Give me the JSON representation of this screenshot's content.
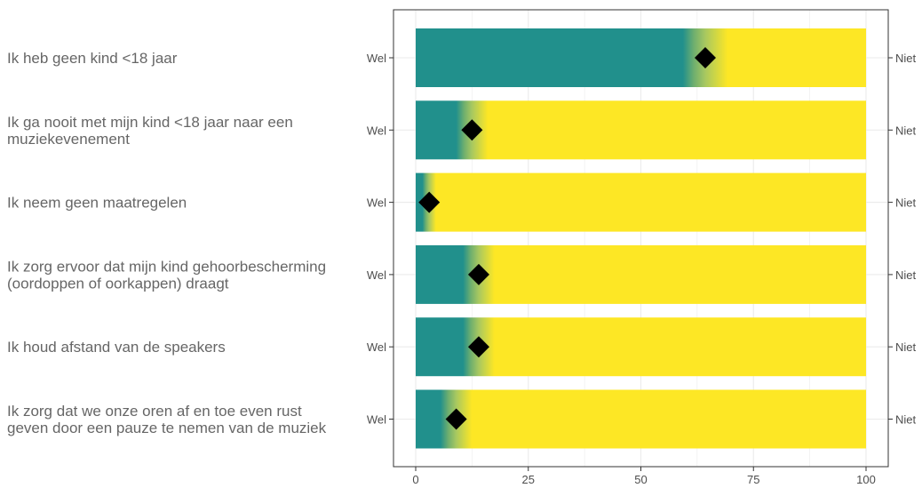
{
  "chart_data": {
    "type": "bar",
    "orientation": "horizontal",
    "stacked_to": 100,
    "title": "",
    "xlabel": "",
    "ylabel": "",
    "xlim": [
      0,
      100
    ],
    "x_ticks": [
      0,
      25,
      50,
      75,
      100
    ],
    "grid": true,
    "left_axis_label": "Wel",
    "right_axis_label": "Niet",
    "colors": {
      "wel": "#21908C",
      "niet": "#FDE725",
      "marker": "#000000",
      "grid": "#EBEBEB",
      "panel_border": "#333333",
      "text": "#4D4D4D"
    },
    "categories": [
      "Ik heb geen kind <18 jaar",
      "Ik ga nooit met mijn kind <18 jaar naar een muziekevenement",
      "Ik neem geen maatregelen",
      "Ik zorg ervoor dat mijn kind gehoorbescherming (oordoppen of oorkappen) draagt",
      "Ik houd afstand van de speakers",
      "Ik zorg dat we onze oren af en toe even rust geven door een pauze te nemen van de muziek"
    ],
    "category_lines": [
      [
        "Ik heb geen kind <18 jaar"
      ],
      [
        "Ik ga nooit met mijn kind <18 jaar naar een",
        "muziekevenement"
      ],
      [
        "Ik neem geen maatregelen"
      ],
      [
        "Ik zorg ervoor dat mijn kind gehoorbescherming",
        "(oordoppen of oorkappen) draagt"
      ],
      [
        "Ik houd afstand van de speakers"
      ],
      [
        "Ik zorg dat we onze oren af en toe even rust",
        "geven door een pauze te nemen van de muziek"
      ]
    ],
    "values": [
      64.3,
      12.5,
      3.0,
      14.0,
      14.0,
      9.0
    ],
    "uncertainty_band": [
      5,
      3.5,
      1.5,
      3.5,
      3.5,
      3.5
    ]
  }
}
